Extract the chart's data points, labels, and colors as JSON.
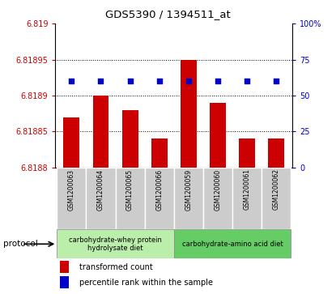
{
  "title": "GDS5390 / 1394511_at",
  "samples": [
    "GSM1200063",
    "GSM1200064",
    "GSM1200065",
    "GSM1200066",
    "GSM1200059",
    "GSM1200060",
    "GSM1200061",
    "GSM1200062"
  ],
  "bar_values": [
    6.81887,
    6.8189,
    6.81888,
    6.81884,
    6.81895,
    6.81889,
    6.81884,
    6.81884
  ],
  "percentile_right": [
    60,
    60,
    60,
    60,
    60,
    60,
    60,
    60
  ],
  "ylim_left": [
    6.8188,
    6.819
  ],
  "ylim_right": [
    0,
    100
  ],
  "yticks_left": [
    6.8188,
    6.81885,
    6.8189,
    6.81895,
    6.819
  ],
  "ytick_labels_left": [
    "6.8188",
    "6.81885",
    "6.8189",
    "6.81895",
    "6.819"
  ],
  "yticks_right": [
    0,
    25,
    50,
    75,
    100
  ],
  "ytick_labels_right": [
    "0",
    "25",
    "50",
    "75",
    "100%"
  ],
  "bar_color": "#cc0000",
  "percentile_color": "#0000cc",
  "group1_label": "carbohydrate-whey protein\nhydrolysate diet",
  "group2_label": "carbohydrate-amino acid diet",
  "group1_color": "#bbeeaa",
  "group2_color": "#66cc66",
  "group1_indices": [
    0,
    1,
    2,
    3
  ],
  "group2_indices": [
    4,
    5,
    6,
    7
  ],
  "protocol_label": "protocol",
  "legend_bar_label": "transformed count",
  "legend_pct_label": "percentile rank within the sample",
  "bar_bottom": 6.8188,
  "figsize": [
    4.15,
    3.63
  ],
  "dpi": 100
}
